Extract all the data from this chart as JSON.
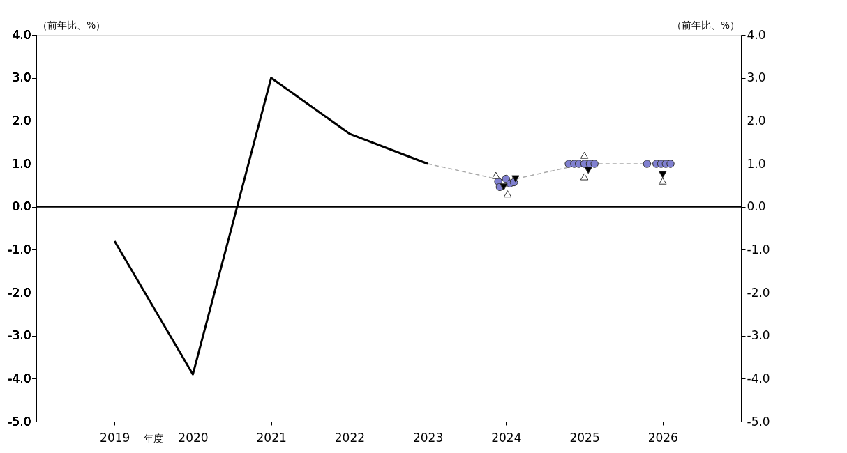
{
  "chart_data": {
    "type": "line",
    "xlabel": "年度",
    "ylabel": "（前年比、%）",
    "y2label": "（前年比、%）",
    "xlim": [
      2018.0,
      2027.0
    ],
    "xticks": [
      2019,
      2020,
      2021,
      2022,
      2023,
      2024,
      2025,
      2026
    ],
    "ylim": [
      -5,
      4
    ],
    "yticks": [
      {
        "value": -5,
        "label": "-5.0"
      },
      {
        "value": -4,
        "label": "-4.0"
      },
      {
        "value": -3,
        "label": "-3.0"
      },
      {
        "value": -2,
        "label": "-2.0"
      },
      {
        "value": -1,
        "label": "-1.0"
      },
      {
        "value": 0,
        "label": "0.0"
      },
      {
        "value": 1,
        "label": "1.0"
      },
      {
        "value": 2,
        "label": "2.0"
      },
      {
        "value": 3,
        "label": "3.0"
      },
      {
        "value": 4,
        "label": "4.0"
      }
    ],
    "y2lim": [
      -5,
      4
    ],
    "y2ticks": [
      {
        "value": -5,
        "label": "-5.0"
      },
      {
        "value": -4,
        "label": "-4.0"
      },
      {
        "value": -3,
        "label": "-3.0"
      },
      {
        "value": -2,
        "label": "-2.0"
      },
      {
        "value": -1,
        "label": "-1.0"
      },
      {
        "value": 0,
        "label": "0.0"
      },
      {
        "value": 1,
        "label": "1.0"
      },
      {
        "value": 2,
        "label": "2.0"
      },
      {
        "value": 3,
        "label": "3.0"
      },
      {
        "value": 4,
        "label": "4.0"
      }
    ],
    "grid": false,
    "ref_lines": [
      {
        "axis": "y",
        "value": 0,
        "color": "#000000"
      }
    ],
    "series": [
      {
        "color": "#000000",
        "line_style": "solid",
        "marker": "none",
        "x": [
          2019,
          2020,
          2021,
          2022,
          2023
        ],
        "values": [
          -0.8,
          -3.9,
          3.0,
          1.7,
          1.0
        ]
      },
      {
        "color": "#aaaaaa",
        "line_style": "dashed",
        "marker": "none",
        "x": [
          2023,
          2024,
          2025,
          2026
        ],
        "values": [
          1.0,
          0.6,
          1.0,
          1.0
        ]
      },
      {
        "type": "scatter",
        "color": "#8080d0",
        "marker": "circle",
        "x": [
          2023.9,
          2023.95,
          2024.0,
          2024.05,
          2024.1,
          2023.92,
          2025.92,
          2025.98,
          2026.04,
          2026.1,
          2024.8,
          2024.87,
          2024.93,
          2025.0,
          2025.07,
          2025.13,
          2025.8
        ],
        "values": [
          0.59,
          null,
          0.65,
          0.54,
          0.57,
          0.46,
          1.0,
          1.0,
          1.0,
          1.0,
          1.0,
          1.0,
          1.0,
          1.0,
          1.0,
          1.0,
          1.0
        ]
      },
      {
        "type": "scatter",
        "color": "#000000",
        "marker": "triangle-down",
        "x": [
          2023.97,
          2024.12,
          2025.05,
          2026.0
        ],
        "values": [
          0.46,
          0.65,
          0.85,
          0.75
        ]
      },
      {
        "type": "scatter",
        "color": "#ffffff",
        "marker": "triangle",
        "x": [
          2023.87,
          2024.02,
          2025.0,
          2025.0,
          2026.0
        ],
        "values": [
          0.73,
          0.3,
          1.2,
          0.7,
          0.6
        ]
      }
    ]
  }
}
